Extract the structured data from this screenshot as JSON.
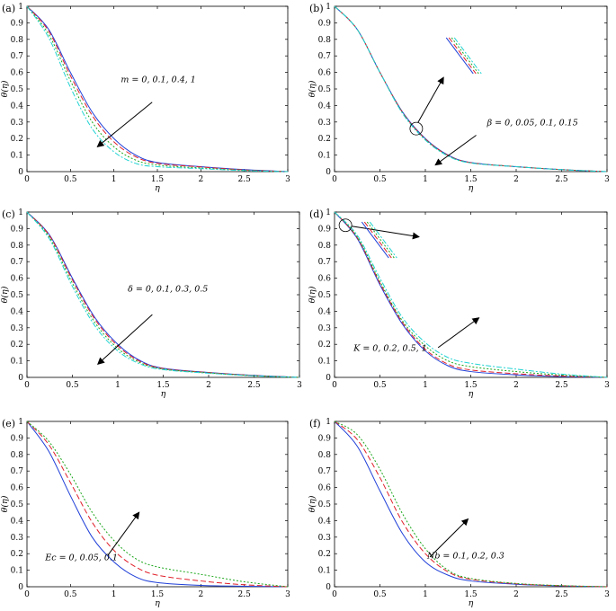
{
  "figure": {
    "panels": [
      {
        "label": "(a)",
        "xlabel": "η",
        "ylabel": "θ(η)",
        "annotation": "m = 0, 0.1, 0.4, 1"
      },
      {
        "label": "(b)",
        "xlabel": "η",
        "ylabel": "θ(η)",
        "annotation": "β = 0, 0.05, 0.1, 0.15"
      },
      {
        "label": "(c)",
        "xlabel": "η",
        "ylabel": "θ(η)",
        "annotation": "δ = 0, 0.1, 0.3, 0.5"
      },
      {
        "label": "(d)",
        "xlabel": "η",
        "ylabel": "θ(η)",
        "annotation": "K = 0, 0.2, 0.5, 1"
      },
      {
        "label": "(e)",
        "xlabel": "η",
        "ylabel": "θ(η)",
        "annotation": "Ec = 0, 0.05, 0.1"
      },
      {
        "label": "(f)",
        "xlabel": "η",
        "ylabel": "θ(η)",
        "annotation": "Nb = 0.1, 0.2, 0.3"
      }
    ]
  },
  "colors": {
    "series": [
      "#1f3fd8",
      "#e0202a",
      "#1fa81f",
      "#22d3d3"
    ],
    "axes": "#000000"
  },
  "chart_data": [
    {
      "type": "line",
      "label": "(a)",
      "xlabel": "η",
      "ylabel": "θ(η)",
      "xlim": [
        0,
        3
      ],
      "ylim": [
        0,
        1
      ],
      "xticks": [
        "0",
        "0.5",
        "1",
        "1.5",
        "2",
        "2.5",
        "3"
      ],
      "yticks": [
        "0",
        "0.1",
        "0.2",
        "0.3",
        "0.4",
        "0.5",
        "0.6",
        "0.7",
        "0.8",
        "0.9",
        "1"
      ],
      "annotation": "m = 0, 0.1, 0.4, 1",
      "x": [
        0,
        0.25,
        0.5,
        0.75,
        1.0,
        1.25,
        1.5,
        2.0,
        2.5,
        3.0
      ],
      "series": [
        {
          "values": [
            1.0,
            0.86,
            0.6,
            0.36,
            0.2,
            0.1,
            0.055,
            0.03,
            0.012,
            0.0
          ]
        },
        {
          "values": [
            1.0,
            0.85,
            0.58,
            0.34,
            0.18,
            0.09,
            0.05,
            0.028,
            0.01,
            0.0
          ]
        },
        {
          "values": [
            1.0,
            0.83,
            0.55,
            0.3,
            0.15,
            0.07,
            0.04,
            0.022,
            0.008,
            0.0
          ]
        },
        {
          "values": [
            1.0,
            0.81,
            0.51,
            0.26,
            0.12,
            0.05,
            0.03,
            0.018,
            0.006,
            0.0
          ]
        }
      ]
    },
    {
      "type": "line",
      "label": "(b)",
      "xlabel": "η",
      "ylabel": "θ(η)",
      "xlim": [
        0,
        3
      ],
      "ylim": [
        0,
        1
      ],
      "xticks": [
        "0",
        "0.5",
        "1",
        "1.5",
        "2",
        "2.5",
        "3"
      ],
      "yticks": [
        "0",
        "0.1",
        "0.2",
        "0.3",
        "0.4",
        "0.5",
        "0.6",
        "0.7",
        "0.8",
        "0.9",
        "1"
      ],
      "annotation": "β = 0, 0.05, 0.1, 0.15",
      "x": [
        0,
        0.25,
        0.5,
        0.75,
        1.0,
        1.25,
        1.5,
        2.0,
        2.5,
        3.0
      ],
      "series": [
        {
          "values": [
            1.0,
            0.86,
            0.6,
            0.36,
            0.2,
            0.1,
            0.055,
            0.03,
            0.012,
            0.0
          ]
        },
        {
          "values": [
            1.0,
            0.86,
            0.6,
            0.357,
            0.197,
            0.098,
            0.054,
            0.03,
            0.012,
            0.0
          ]
        },
        {
          "values": [
            1.0,
            0.86,
            0.6,
            0.354,
            0.194,
            0.096,
            0.053,
            0.03,
            0.012,
            0.0
          ]
        },
        {
          "values": [
            1.0,
            0.86,
            0.6,
            0.351,
            0.191,
            0.094,
            0.052,
            0.03,
            0.012,
            0.0
          ]
        }
      ]
    },
    {
      "type": "line",
      "label": "(c)",
      "xlabel": "η",
      "ylabel": "θ(η)",
      "xlim": [
        0,
        3
      ],
      "ylim": [
        0,
        1
      ],
      "xticks": [
        "0",
        "0.5",
        "1",
        "1.5",
        "2",
        "2.5",
        "3"
      ],
      "yticks": [
        "0",
        "0.1",
        "0.2",
        "0.3",
        "0.4",
        "0.5",
        "0.6",
        "0.7",
        "0.8",
        "0.9",
        "1"
      ],
      "annotation": "δ = 0, 0.1, 0.3, 0.5",
      "x": [
        0,
        0.25,
        0.5,
        0.75,
        1.0,
        1.25,
        1.5,
        2.0,
        2.5,
        3.0
      ],
      "series": [
        {
          "values": [
            1.0,
            0.86,
            0.6,
            0.36,
            0.2,
            0.1,
            0.055,
            0.03,
            0.012,
            0.0
          ]
        },
        {
          "values": [
            1.0,
            0.855,
            0.59,
            0.35,
            0.19,
            0.095,
            0.053,
            0.029,
            0.011,
            0.0
          ]
        },
        {
          "values": [
            1.0,
            0.845,
            0.57,
            0.33,
            0.175,
            0.088,
            0.05,
            0.027,
            0.01,
            0.0
          ]
        },
        {
          "values": [
            1.0,
            0.835,
            0.55,
            0.31,
            0.16,
            0.08,
            0.047,
            0.025,
            0.009,
            0.0
          ]
        }
      ]
    },
    {
      "type": "line",
      "label": "(d)",
      "xlabel": "η",
      "ylabel": "θ(η)",
      "xlim": [
        0,
        3
      ],
      "ylim": [
        0,
        1
      ],
      "xticks": [
        "0",
        "0.5",
        "1",
        "1.5",
        "2",
        "2.5",
        "3"
      ],
      "yticks": [
        "0",
        "0.1",
        "0.2",
        "0.3",
        "0.4",
        "0.5",
        "0.6",
        "0.7",
        "0.8",
        "0.9",
        "1"
      ],
      "annotation": "K = 0, 0.2, 0.5, 1",
      "x": [
        0,
        0.25,
        0.5,
        0.75,
        1.0,
        1.25,
        1.5,
        2.0,
        2.5,
        3.0
      ],
      "series": [
        {
          "values": [
            1.0,
            0.84,
            0.56,
            0.32,
            0.16,
            0.07,
            0.035,
            0.015,
            0.005,
            0.0
          ]
        },
        {
          "values": [
            1.0,
            0.845,
            0.57,
            0.33,
            0.17,
            0.08,
            0.045,
            0.022,
            0.008,
            0.0
          ]
        },
        {
          "values": [
            1.0,
            0.85,
            0.58,
            0.34,
            0.19,
            0.1,
            0.065,
            0.035,
            0.014,
            0.0
          ]
        },
        {
          "values": [
            1.0,
            0.86,
            0.6,
            0.36,
            0.21,
            0.12,
            0.085,
            0.05,
            0.02,
            0.0
          ]
        }
      ]
    },
    {
      "type": "line",
      "label": "(e)",
      "xlabel": "η",
      "ylabel": "θ(η)",
      "xlim": [
        0,
        3
      ],
      "ylim": [
        0,
        1
      ],
      "xticks": [
        "0",
        "0.5",
        "1",
        "1.5",
        "2",
        "2.5",
        "3"
      ],
      "yticks": [
        "0",
        "0.1",
        "0.2",
        "0.3",
        "0.4",
        "0.5",
        "0.6",
        "0.7",
        "0.8",
        "0.9",
        "1"
      ],
      "annotation": "Ec = 0, 0.05, 0.1",
      "x": [
        0,
        0.25,
        0.5,
        0.75,
        1.0,
        1.25,
        1.5,
        2.0,
        2.5,
        3.0
      ],
      "series": [
        {
          "values": [
            1.0,
            0.82,
            0.55,
            0.3,
            0.15,
            0.06,
            0.025,
            0.008,
            0.003,
            0.0
          ]
        },
        {
          "values": [
            1.0,
            0.86,
            0.63,
            0.39,
            0.22,
            0.12,
            0.07,
            0.035,
            0.012,
            0.0
          ]
        },
        {
          "values": [
            1.0,
            0.88,
            0.68,
            0.45,
            0.28,
            0.17,
            0.12,
            0.075,
            0.03,
            0.0
          ]
        }
      ]
    },
    {
      "type": "line",
      "label": "(f)",
      "xlabel": "η",
      "ylabel": "θ(η)",
      "xlim": [
        0,
        3
      ],
      "ylim": [
        0,
        1
      ],
      "xticks": [
        "0",
        "0.5",
        "1",
        "1.5",
        "2",
        "2.5",
        "3"
      ],
      "yticks": [
        "0",
        "0.1",
        "0.2",
        "0.3",
        "0.4",
        "0.5",
        "0.6",
        "0.7",
        "0.8",
        "0.9",
        "1"
      ],
      "annotation": "Nb = 0.1, 0.2, 0.3",
      "x": [
        0,
        0.25,
        0.5,
        0.75,
        1.0,
        1.25,
        1.5,
        2.0,
        2.5,
        3.0
      ],
      "series": [
        {
          "values": [
            1.0,
            0.85,
            0.58,
            0.32,
            0.15,
            0.07,
            0.035,
            0.015,
            0.005,
            0.0
          ]
        },
        {
          "values": [
            1.0,
            0.89,
            0.66,
            0.39,
            0.2,
            0.09,
            0.045,
            0.018,
            0.006,
            0.0
          ]
        },
        {
          "values": [
            1.0,
            0.92,
            0.71,
            0.44,
            0.23,
            0.1,
            0.05,
            0.02,
            0.007,
            0.0
          ]
        }
      ]
    }
  ]
}
